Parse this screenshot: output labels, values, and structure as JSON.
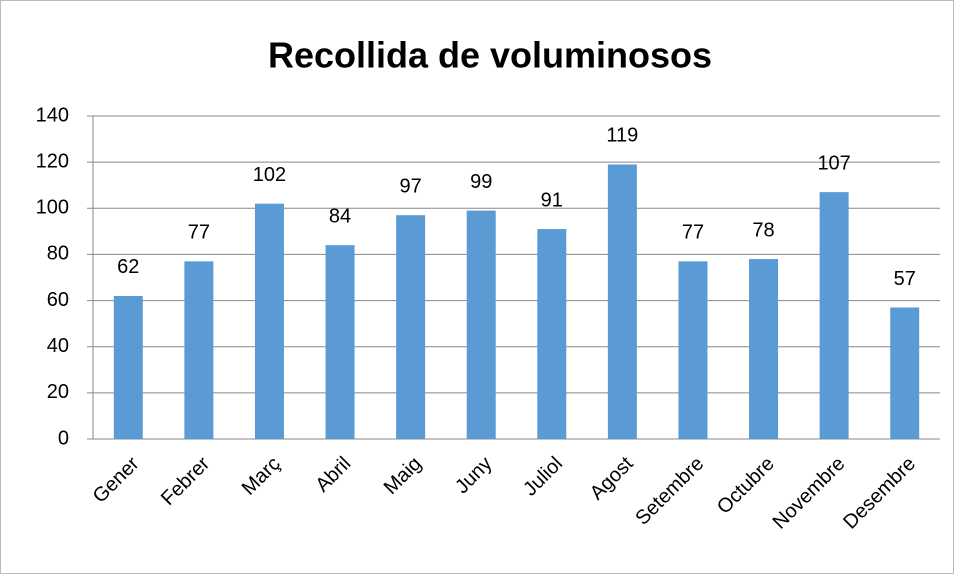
{
  "chart_data": {
    "type": "bar",
    "title": "Recollida de voluminosos",
    "categories": [
      "Gener",
      "Febrer",
      "Març",
      "Abril",
      "Maig",
      "Juny",
      "Juliol",
      "Agost",
      "Setembre",
      "Octubre",
      "Novembre",
      "Desembre"
    ],
    "values": [
      62,
      77,
      102,
      84,
      97,
      99,
      91,
      119,
      77,
      78,
      107,
      57
    ],
    "color": "#5b9bd5",
    "ylim": [
      0,
      140
    ],
    "yticks": [
      0,
      20,
      40,
      60,
      80,
      100,
      120,
      140
    ],
    "grid": true
  }
}
